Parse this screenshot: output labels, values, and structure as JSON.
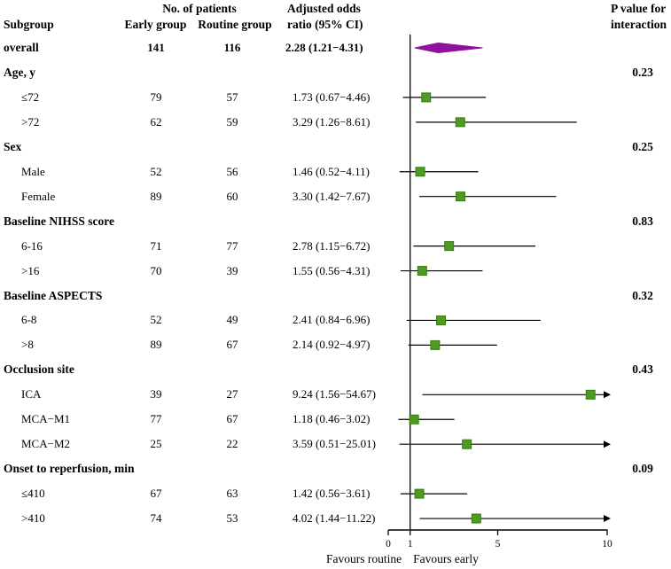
{
  "header": {
    "subgroup": "Subgroup",
    "no_of_patients": "No. of patients",
    "early_group": "Early group",
    "routine_group": "Routine group",
    "or_line1": "Adjusted odds",
    "or_line2": "ratio (95% CI)",
    "p_line1": "P value for",
    "p_line2": "interaction"
  },
  "axis": {
    "tick_labels": [
      "0",
      "1",
      "5",
      "10"
    ],
    "tick_values": [
      0,
      1,
      5,
      10
    ],
    "range": [
      0,
      10
    ],
    "reference_line": 1,
    "favours_left": "Favours routine",
    "favours_right": "Favours early"
  },
  "colors": {
    "square_fill": "#4d9b20",
    "square_stroke": "#3a7a14",
    "diamond_fill": "#90119c",
    "line": "#000000"
  },
  "chart_data": {
    "type": "forest",
    "x_scale": "linear",
    "x_range": [
      0,
      10
    ],
    "x_ticks": [
      0,
      1,
      5,
      10
    ],
    "reference_line": 1,
    "xlabel_left": "Favours routine",
    "xlabel_right": "Favours early",
    "columns": [
      "Subgroup",
      "Early group",
      "Routine group",
      "Adjusted odds ratio (95% CI)",
      "P value for interaction"
    ],
    "rows": [
      {
        "label": "overall",
        "bold": true,
        "early_n": "141",
        "routine_n": "116",
        "or": 2.28,
        "ci_low": 1.21,
        "ci_high": 4.31,
        "or_text": "2.28 (1.21−4.31)",
        "marker": "diamond"
      },
      {
        "label": "Age, y",
        "bold": true,
        "p_interaction": "0.23"
      },
      {
        "label": "≤72",
        "early_n": "79",
        "routine_n": "57",
        "or": 1.73,
        "ci_low": 0.67,
        "ci_high": 4.46,
        "or_text": "1.73 (0.67−4.46)",
        "marker": "square"
      },
      {
        "label": ">72",
        "early_n": "62",
        "routine_n": "59",
        "or": 3.29,
        "ci_low": 1.26,
        "ci_high": 8.61,
        "or_text": "3.29 (1.26−8.61)",
        "marker": "square"
      },
      {
        "label": "Sex",
        "bold": true,
        "p_interaction": "0.25"
      },
      {
        "label": "Male",
        "early_n": "52",
        "routine_n": "56",
        "or": 1.46,
        "ci_low": 0.52,
        "ci_high": 4.11,
        "or_text": "1.46 (0.52−4.11)",
        "marker": "square"
      },
      {
        "label": "Female",
        "early_n": "89",
        "routine_n": "60",
        "or": 3.3,
        "ci_low": 1.42,
        "ci_high": 7.67,
        "or_text": "3.30 (1.42−7.67)",
        "marker": "square"
      },
      {
        "label": "Baseline NIHSS score",
        "bold": true,
        "p_interaction": "0.83"
      },
      {
        "label": "6-16",
        "early_n": "71",
        "routine_n": "77",
        "or": 2.78,
        "ci_low": 1.15,
        "ci_high": 6.72,
        "or_text": "2.78 (1.15−6.72)",
        "marker": "square"
      },
      {
        "label": ">16",
        "early_n": "70",
        "routine_n": "39",
        "or": 1.55,
        "ci_low": 0.56,
        "ci_high": 4.31,
        "or_text": "1.55 (0.56−4.31)",
        "marker": "square"
      },
      {
        "label": "Baseline ASPECTS",
        "bold": true,
        "p_interaction": "0.32"
      },
      {
        "label": "6-8",
        "early_n": "52",
        "routine_n": "49",
        "or": 2.41,
        "ci_low": 0.84,
        "ci_high": 6.96,
        "or_text": "2.41 (0.84−6.96)",
        "marker": "square"
      },
      {
        "label": ">8",
        "early_n": "89",
        "routine_n": "67",
        "or": 2.14,
        "ci_low": 0.92,
        "ci_high": 4.97,
        "or_text": "2.14 (0.92−4.97)",
        "marker": "square"
      },
      {
        "label": "Occlusion site",
        "bold": true,
        "p_interaction": "0.43"
      },
      {
        "label": "ICA",
        "early_n": "39",
        "routine_n": "27",
        "or": 9.24,
        "ci_low": 1.56,
        "ci_high": 54.67,
        "or_text": "9.24 (1.56−54.67)",
        "marker": "square"
      },
      {
        "label": "MCA−M1",
        "early_n": "77",
        "routine_n": "67",
        "or": 1.18,
        "ci_low": 0.46,
        "ci_high": 3.02,
        "or_text": "1.18 (0.46−3.02)",
        "marker": "square"
      },
      {
        "label": "MCA−M2",
        "early_n": "25",
        "routine_n": "22",
        "or": 3.59,
        "ci_low": 0.51,
        "ci_high": 25.01,
        "or_text": "3.59 (0.51−25.01)",
        "marker": "square"
      },
      {
        "label": "Onset to reperfusion, min",
        "bold": true,
        "p_interaction": "0.09"
      },
      {
        "label": "≤410",
        "early_n": "67",
        "routine_n": "63",
        "or": 1.42,
        "ci_low": 0.56,
        "ci_high": 3.61,
        "or_text": "1.42 (0.56−3.61)",
        "marker": "square"
      },
      {
        "label": ">410",
        "early_n": "74",
        "routine_n": "53",
        "or": 4.02,
        "ci_low": 1.44,
        "ci_high": 11.22,
        "or_text": "4.02 (1.44−11.22)",
        "marker": "square"
      }
    ]
  }
}
